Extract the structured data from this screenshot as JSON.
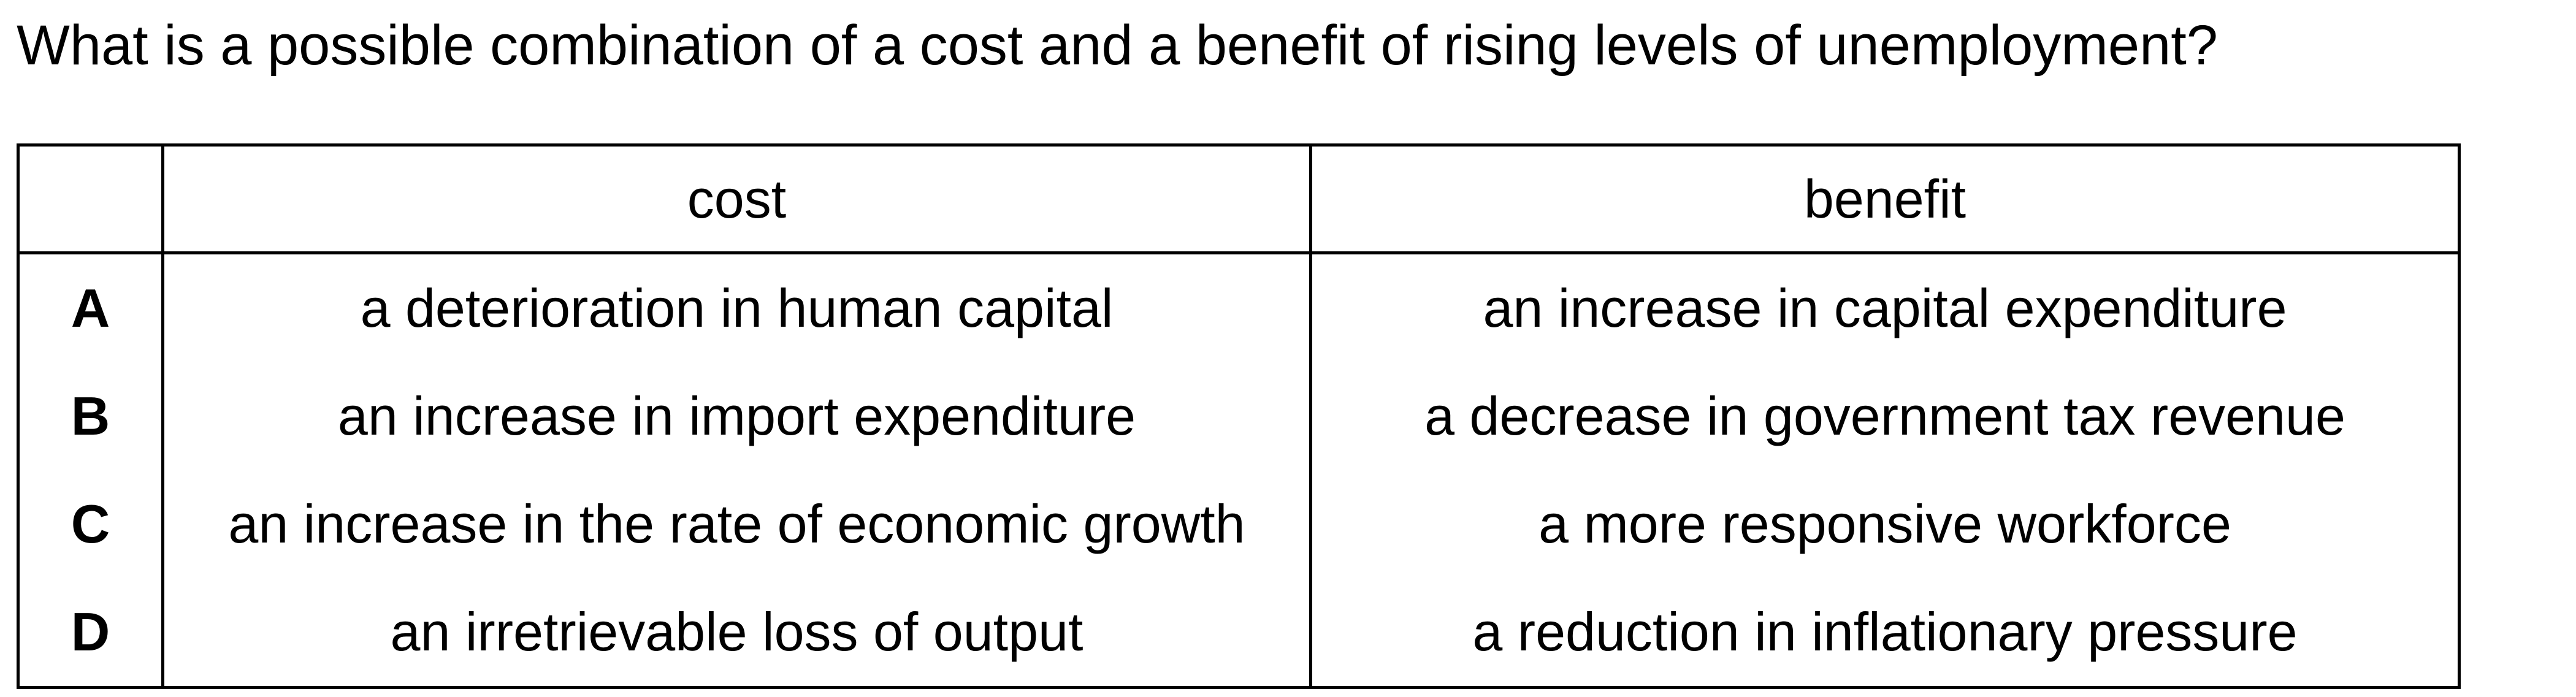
{
  "question": "What is a possible combination of a cost and a benefit of rising levels of unemployment?",
  "table": {
    "headers": [
      "",
      "cost",
      "benefit"
    ],
    "rows": [
      {
        "letter": "A",
        "cost": "a deterioration in human capital",
        "benefit": "an increase in capital expenditure"
      },
      {
        "letter": "B",
        "cost": "an increase in import expenditure",
        "benefit": "a decrease in government tax revenue"
      },
      {
        "letter": "C",
        "cost": "an increase in the rate of economic growth",
        "benefit": "a more responsive workforce"
      },
      {
        "letter": "D",
        "cost": "an irretrievable loss of output",
        "benefit": "a reduction in inflationary pressure"
      }
    ]
  }
}
